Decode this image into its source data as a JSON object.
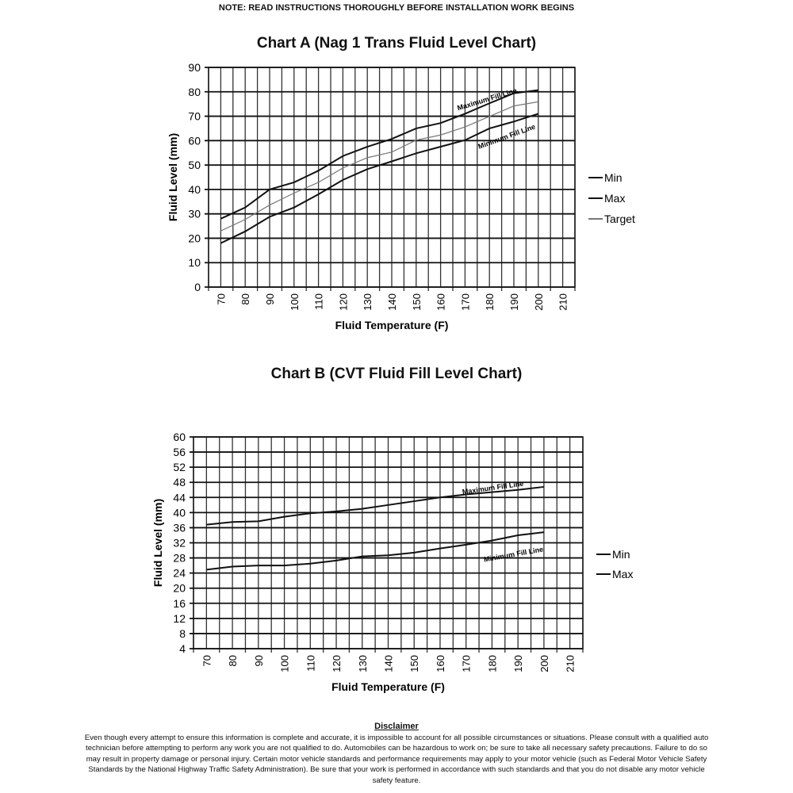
{
  "header": {
    "note": "NOTE: READ INSTRUCTIONS THOROUGHLY BEFORE INSTALLATION WORK BEGINS"
  },
  "chart_data": [
    {
      "type": "line",
      "title": "Chart A (Nag 1 Trans Fluid Level Chart)",
      "xlabel": "Fluid Temperature (F)",
      "ylabel": "Fluid Level (mm)",
      "xlim": [
        65,
        215
      ],
      "ylim": [
        0,
        90
      ],
      "xticks": [
        70,
        80,
        90,
        100,
        110,
        120,
        130,
        140,
        150,
        160,
        170,
        180,
        190,
        200,
        210
      ],
      "yticks": [
        0,
        10,
        20,
        30,
        40,
        50,
        60,
        70,
        80,
        90
      ],
      "grid": true,
      "legend": "right",
      "x": [
        70,
        80,
        90,
        100,
        110,
        120,
        130,
        140,
        150,
        160,
        170,
        180,
        190,
        200
      ],
      "series": [
        {
          "name": "Min",
          "color": "#111111",
          "values": [
            18,
            22.8,
            28.8,
            32.6,
            38,
            43.9,
            48.3,
            51.5,
            54.8,
            57.5,
            60.2,
            65,
            67.8,
            71
          ]
        },
        {
          "name": "Max",
          "color": "#111111",
          "values": [
            28,
            32.6,
            40,
            42.9,
            47.7,
            53.7,
            57.5,
            60.7,
            65,
            67.2,
            71,
            75.3,
            79.4,
            80.7
          ]
        },
        {
          "name": "Target",
          "color": "#777777",
          "values": [
            23,
            27.7,
            33.6,
            38.5,
            42.9,
            48.8,
            53,
            55.3,
            60.2,
            62.3,
            65.6,
            69.9,
            74.2,
            75.9
          ]
        }
      ],
      "annotations": [
        "Maximum Fill Line",
        "Minimum Fill Line"
      ]
    },
    {
      "type": "line",
      "title": "Chart B (CVT Fluid Fill Level Chart)",
      "xlabel": "Fluid Temperature (F)",
      "ylabel": "Fluid Level (mm)",
      "xlim": [
        65,
        215
      ],
      "ylim": [
        4,
        60
      ],
      "xticks": [
        70,
        80,
        90,
        100,
        110,
        120,
        130,
        140,
        150,
        160,
        170,
        180,
        190,
        200,
        210
      ],
      "yticks": [
        4,
        8,
        12,
        16,
        20,
        24,
        28,
        32,
        36,
        40,
        44,
        48,
        52,
        56,
        60
      ],
      "grid": true,
      "legend": "right",
      "x": [
        70,
        80,
        90,
        100,
        110,
        120,
        130,
        140,
        150,
        160,
        170,
        180,
        190,
        200
      ],
      "series": [
        {
          "name": "Min",
          "color": "#111111",
          "values": [
            24.9,
            25.7,
            26,
            26,
            26.5,
            27.3,
            28.4,
            28.7,
            29.4,
            30.5,
            31.5,
            32.6,
            34,
            34.8
          ]
        },
        {
          "name": "Max",
          "color": "#111111",
          "values": [
            36.8,
            37.5,
            37.7,
            38.9,
            39.8,
            40.3,
            41,
            42,
            43,
            44,
            44.8,
            45.4,
            46,
            46.8
          ]
        }
      ],
      "annotations": [
        "Maximum Fill Line",
        "Minimum Fill Line"
      ]
    }
  ],
  "disclaimer": {
    "title": "Disclaimer",
    "text": "Even though every attempt to ensure this information is complete and accurate, it is impossible to account for all possible circumstances or situations.  Please consult with a qualified auto technician before attempting to perform any work you are not qualified to do.  Automobiles can be hazardous to work on; be sure to take all necessary safety precautions.  Failure to do so may result in property damage or personal injury.  Certain motor vehicle standards and performance requirements may apply to your motor vehicle (such as Federal Motor Vehicle Safety Standards by the National Highway Traffic Safety Administration).  Be sure that your work is performed in accordance with such standards and that you do not disable any motor vehicle safety feature."
  }
}
